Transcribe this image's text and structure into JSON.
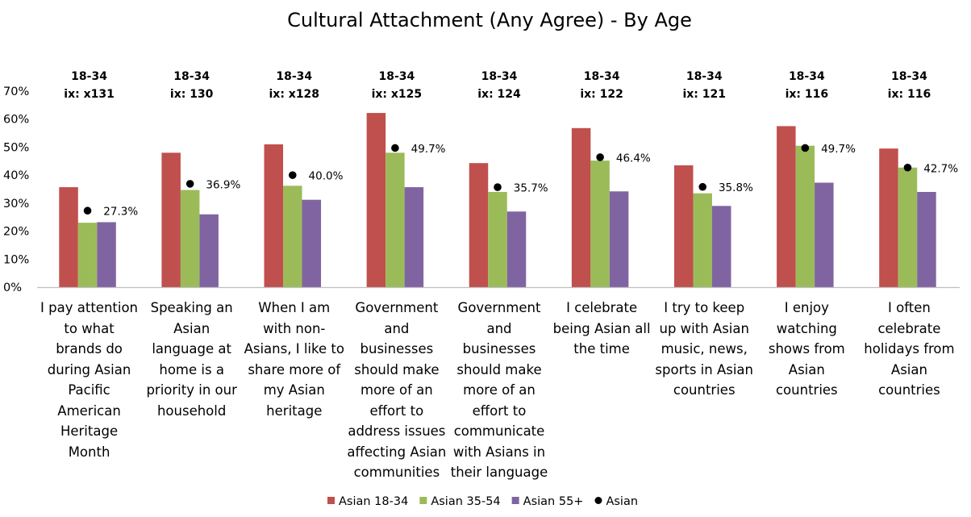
{
  "chart_data": {
    "type": "bar",
    "title": "Cultural Attachment (Any Agree) - By Age",
    "ylim": [
      0,
      70
    ],
    "yticks": [
      "0%",
      "10%",
      "20%",
      "30%",
      "40%",
      "50%",
      "60%",
      "70%"
    ],
    "categories": [
      "I pay attention to what brands do during Asian Pacific American Heritage Month",
      "Speaking an Asian language at home is a priority in our household",
      "When I am with non-Asians, I like to share more of my Asian heritage",
      "Government and businesses should make more of an effort to address issues affecting Asian communities",
      "Government and businesses should make more of an effort to communicate with Asians in their language",
      "I celebrate being Asian all the time",
      "I try to keep up with Asian music, news, sports in Asian countries",
      "I enjoy watching shows from Asian countries",
      "I often celebrate holidays from Asian countries"
    ],
    "category_lines": [
      [
        "I pay attention",
        "to what",
        "brands do",
        "during Asian",
        "Pacific",
        "American",
        "Heritage",
        "Month"
      ],
      [
        "Speaking an",
        "Asian",
        "language at",
        "home is a",
        "priority in our",
        "household"
      ],
      [
        "When I am",
        "with non-",
        "Asians, I like to",
        "share more of",
        "my Asian",
        "heritage"
      ],
      [
        "Government",
        "and",
        "businesses",
        "should make",
        "more of an",
        "effort to",
        "address issues",
        "affecting Asian",
        "communities"
      ],
      [
        "Government",
        "and",
        "businesses",
        "should make",
        "more of an",
        "effort to",
        "communicate",
        "with Asians in",
        "their language"
      ],
      [
        "I celebrate",
        "being Asian all",
        "the time"
      ],
      [
        "I try to keep",
        "up with Asian",
        "music, news,",
        "sports in Asian",
        "countries"
      ],
      [
        "I enjoy",
        "watching",
        "shows from",
        "Asian",
        "countries"
      ],
      [
        "I often",
        "celebrate",
        "holidays from",
        "Asian",
        "countries"
      ]
    ],
    "group_headers": [
      "18-34",
      "18-34",
      "18-34",
      "18-34",
      "18-34",
      "18-34",
      "18-34",
      "18-34",
      "18-34"
    ],
    "index_labels": [
      "ix: x131",
      "ix: 130",
      "ix: x128",
      "ix: x125",
      "ix: 124",
      "ix: 122",
      "ix: 121",
      "ix: 116",
      "ix: 116"
    ],
    "series": [
      {
        "name": "Asian 18-34",
        "color": "#C0504D",
        "values": [
          35.7,
          48.0,
          51.0,
          62.2,
          44.3,
          56.8,
          43.5,
          57.5,
          49.5
        ]
      },
      {
        "name": "Asian 35-54",
        "color": "#9BBB59",
        "values": [
          23.0,
          34.7,
          36.2,
          48.0,
          34.0,
          45.2,
          33.5,
          50.5,
          42.7
        ]
      },
      {
        "name": "Asian 55+",
        "color": "#8064A2",
        "values": [
          23.2,
          26.0,
          31.2,
          35.7,
          27.0,
          34.2,
          29.0,
          37.3,
          34.0
        ]
      }
    ],
    "markers": {
      "name": "Asian",
      "color": "#000000",
      "values": [
        27.3,
        36.9,
        40.0,
        49.7,
        35.7,
        46.4,
        35.8,
        49.7,
        42.7
      ],
      "labels": [
        "27.3%",
        "36.9%",
        "40.0%",
        "49.7%",
        "35.7%",
        "46.4%",
        "35.8%",
        "49.7%",
        "42.7%"
      ]
    },
    "legend": [
      "Asian 18-34",
      "Asian 35-54",
      "Asian 55+",
      "Asian"
    ],
    "legend_position": "bottom",
    "grid": false
  }
}
